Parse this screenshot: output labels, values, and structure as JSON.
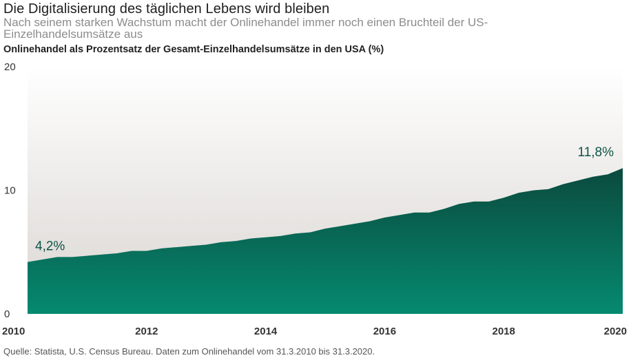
{
  "header": {
    "title": "Die Digitalisierung des täglichen Lebens wird bleiben",
    "subtitle": "Nach seinem starken Wachstum macht der Onlinehandel immer noch einen Bruchteil der US-Einzelhandelsumsätze aus"
  },
  "source": "Quelle: Statista, U.S. Census Bureau. Daten zum Onlinehandel vom 31.3.2010 bis 31.3.2020.",
  "colors": {
    "area_top": "#0b4a3e",
    "area_bottom": "#058a70",
    "background_top": "#ffffff",
    "background_bottom": "#d9d5d1",
    "annotation": "#0d5446"
  },
  "chart_data": {
    "type": "area",
    "title": "Onlinehandel als Prozentsatz der Gesamt-Einzelhandelsumsätze in den USA (%)",
    "xlabel": "",
    "ylabel": "",
    "x": [
      "2010-Q1",
      "2010-Q2",
      "2010-Q3",
      "2010-Q4",
      "2011-Q1",
      "2011-Q2",
      "2011-Q3",
      "2011-Q4",
      "2012-Q1",
      "2012-Q2",
      "2012-Q3",
      "2012-Q4",
      "2013-Q1",
      "2013-Q2",
      "2013-Q3",
      "2013-Q4",
      "2014-Q1",
      "2014-Q2",
      "2014-Q3",
      "2014-Q4",
      "2015-Q1",
      "2015-Q2",
      "2015-Q3",
      "2015-Q4",
      "2016-Q1",
      "2016-Q2",
      "2016-Q3",
      "2016-Q4",
      "2017-Q1",
      "2017-Q2",
      "2017-Q3",
      "2017-Q4",
      "2018-Q1",
      "2018-Q2",
      "2018-Q3",
      "2018-Q4",
      "2019-Q1",
      "2019-Q2",
      "2019-Q3",
      "2019-Q4",
      "2020-Q1"
    ],
    "values": [
      4.2,
      4.4,
      4.6,
      4.6,
      4.7,
      4.8,
      4.9,
      5.1,
      5.1,
      5.3,
      5.4,
      5.5,
      5.6,
      5.8,
      5.9,
      6.1,
      6.2,
      6.3,
      6.5,
      6.6,
      6.9,
      7.1,
      7.3,
      7.5,
      7.8,
      8.0,
      8.2,
      8.2,
      8.5,
      8.9,
      9.1,
      9.1,
      9.4,
      9.8,
      10.0,
      10.1,
      10.5,
      10.8,
      11.1,
      11.3,
      11.8
    ],
    "xlim": [
      2010,
      2020
    ],
    "ylim": [
      0,
      20
    ],
    "x_ticks": [
      "2010",
      "2012",
      "2014",
      "2016",
      "2018",
      "2020"
    ],
    "y_ticks": [
      "0",
      "10",
      "20"
    ],
    "grid": false,
    "annotations": [
      {
        "label": "4,2%",
        "value": 4.2,
        "at": "2010-Q1"
      },
      {
        "label": "11,8%",
        "value": 11.8,
        "at": "2020-Q1"
      }
    ]
  }
}
